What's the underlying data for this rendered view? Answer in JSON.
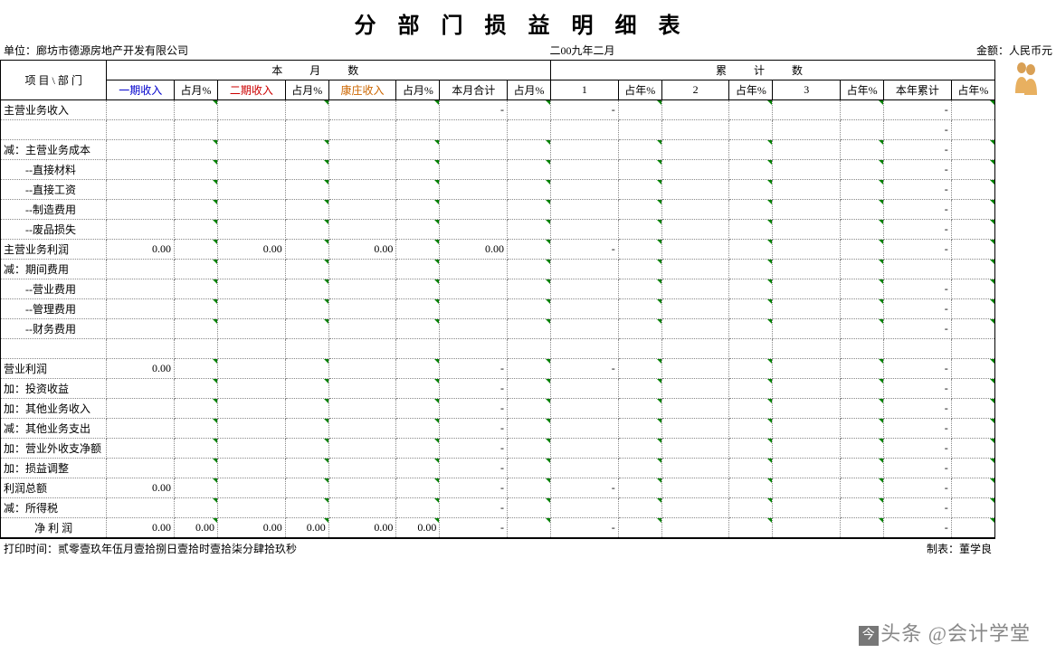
{
  "title": "分部门损益明细表",
  "meta": {
    "unit_label": "单位：",
    "unit_value": "廊坊市德源房地产开发有限公司",
    "period": "二00九年二月",
    "currency_label": "金额：",
    "currency_value": "人民币元"
  },
  "header": {
    "corner": "项 目 \\ 部 门",
    "group1": "本月数",
    "group2": "累计数",
    "cols": [
      {
        "label": "一期收入",
        "color": "c-blue"
      },
      {
        "label": "占月%",
        "color": ""
      },
      {
        "label": "二期收入",
        "color": "c-red"
      },
      {
        "label": "占月%",
        "color": ""
      },
      {
        "label": "康庄收入",
        "color": "c-brown"
      },
      {
        "label": "占月%",
        "color": ""
      },
      {
        "label": "本月合计",
        "color": ""
      },
      {
        "label": "占月%",
        "color": ""
      },
      {
        "label": "1",
        "color": ""
      },
      {
        "label": "占年%",
        "color": ""
      },
      {
        "label": "2",
        "color": ""
      },
      {
        "label": "占年%",
        "color": ""
      },
      {
        "label": "3",
        "color": ""
      },
      {
        "label": "占年%",
        "color": ""
      },
      {
        "label": "本年累计",
        "color": ""
      },
      {
        "label": "占年%",
        "color": ""
      }
    ]
  },
  "rows": [
    {
      "label": "主营业务收入",
      "cells": [
        "",
        "",
        "",
        "",
        "",
        "",
        "-",
        "",
        "-",
        "",
        "",
        "",
        "",
        "",
        "-",
        ""
      ],
      "marks": [
        1,
        3,
        5,
        7,
        9,
        11,
        13,
        15
      ]
    },
    {
      "label": "",
      "cells": [
        "",
        "",
        "",
        "",
        "",
        "",
        "",
        "",
        "",
        "",
        "",
        "",
        "",
        "",
        "-",
        ""
      ],
      "marks": []
    },
    {
      "label": "减：主营业务成本",
      "cells": [
        "",
        "",
        "",
        "",
        "",
        "",
        "",
        "",
        "",
        "",
        "",
        "",
        "",
        "",
        "-",
        ""
      ],
      "marks": [
        1,
        3,
        5,
        7,
        9,
        11,
        13,
        15
      ]
    },
    {
      "label": "　　--直接材料",
      "cells": [
        "",
        "",
        "",
        "",
        "",
        "",
        "",
        "",
        "",
        "",
        "",
        "",
        "",
        "",
        "-",
        ""
      ],
      "marks": [
        1,
        3,
        5,
        7,
        9,
        11,
        13,
        15
      ]
    },
    {
      "label": "　　--直接工资",
      "cells": [
        "",
        "",
        "",
        "",
        "",
        "",
        "",
        "",
        "",
        "",
        "",
        "",
        "",
        "",
        "-",
        ""
      ],
      "marks": [
        1,
        3,
        5,
        7,
        9,
        11,
        13,
        15
      ]
    },
    {
      "label": "　　--制造费用",
      "cells": [
        "",
        "",
        "",
        "",
        "",
        "",
        "",
        "",
        "",
        "",
        "",
        "",
        "",
        "",
        "-",
        ""
      ],
      "marks": [
        1,
        3,
        5,
        7,
        9,
        11,
        13,
        15
      ]
    },
    {
      "label": "　　--废品损失",
      "cells": [
        "",
        "",
        "",
        "",
        "",
        "",
        "",
        "",
        "",
        "",
        "",
        "",
        "",
        "",
        "-",
        ""
      ],
      "marks": [
        1,
        3,
        5,
        7,
        9,
        11,
        13,
        15
      ]
    },
    {
      "label": "主营业务利润",
      "cells": [
        "0.00",
        "",
        "0.00",
        "",
        "0.00",
        "",
        "0.00",
        "",
        "-",
        "",
        "",
        "",
        "",
        "",
        "-",
        ""
      ],
      "marks": [
        1,
        3,
        5,
        7,
        9,
        11,
        13,
        15
      ]
    },
    {
      "label": "减：期间费用",
      "cells": [
        "",
        "",
        "",
        "",
        "",
        "",
        "",
        "",
        "",
        "",
        "",
        "",
        "",
        "",
        "",
        ""
      ],
      "marks": [
        1,
        3,
        5,
        7,
        9,
        11,
        13,
        15
      ]
    },
    {
      "label": "　　--营业费用",
      "cells": [
        "",
        "",
        "",
        "",
        "",
        "",
        "",
        "",
        "",
        "",
        "",
        "",
        "",
        "",
        "-",
        ""
      ],
      "marks": [
        1,
        3,
        5,
        7,
        9,
        11,
        13,
        15
      ]
    },
    {
      "label": "　　--管理费用",
      "cells": [
        "",
        "",
        "",
        "",
        "",
        "",
        "",
        "",
        "",
        "",
        "",
        "",
        "",
        "",
        "-",
        ""
      ],
      "marks": [
        1,
        3,
        5,
        7,
        9,
        11,
        13,
        15
      ]
    },
    {
      "label": "　　--财务费用",
      "cells": [
        "",
        "",
        "",
        "",
        "",
        "",
        "",
        "",
        "",
        "",
        "",
        "",
        "",
        "",
        "-",
        ""
      ],
      "marks": [
        1,
        3,
        5,
        7,
        9,
        11,
        13,
        15
      ]
    },
    {
      "label": "",
      "cells": [
        "",
        "",
        "",
        "",
        "",
        "",
        "",
        "",
        "",
        "",
        "",
        "",
        "",
        "",
        "",
        ""
      ],
      "marks": []
    },
    {
      "label": "营业利润",
      "cells": [
        "0.00",
        "",
        "",
        "",
        "",
        "",
        "-",
        "",
        "-",
        "",
        "",
        "",
        "",
        "",
        "-",
        ""
      ],
      "marks": [
        1,
        3,
        5,
        7,
        9,
        11,
        13,
        15
      ]
    },
    {
      "label": "加：投资收益",
      "cells": [
        "",
        "",
        "",
        "",
        "",
        "",
        "-",
        "",
        "",
        "",
        "",
        "",
        "",
        "",
        "-",
        ""
      ],
      "marks": [
        1,
        3,
        5,
        7,
        9,
        11,
        13,
        15
      ]
    },
    {
      "label": "加：其他业务收入",
      "cells": [
        "",
        "",
        "",
        "",
        "",
        "",
        "-",
        "",
        "",
        "",
        "",
        "",
        "",
        "",
        "-",
        ""
      ],
      "marks": [
        1,
        3,
        5,
        7,
        9,
        11,
        13,
        15
      ]
    },
    {
      "label": "减：其他业务支出",
      "cells": [
        "",
        "",
        "",
        "",
        "",
        "",
        "-",
        "",
        "",
        "",
        "",
        "",
        "",
        "",
        "-",
        ""
      ],
      "marks": [
        1,
        3,
        5,
        7,
        9,
        11,
        13,
        15
      ]
    },
    {
      "label": "加：营业外收支净额",
      "cells": [
        "",
        "",
        "",
        "",
        "",
        "",
        "-",
        "",
        "",
        "",
        "",
        "",
        "",
        "",
        "-",
        ""
      ],
      "marks": [
        1,
        3,
        5,
        7,
        9,
        11,
        13,
        15
      ]
    },
    {
      "label": "加：损益调整",
      "cells": [
        "",
        "",
        "",
        "",
        "",
        "",
        "-",
        "",
        "",
        "",
        "",
        "",
        "",
        "",
        "-",
        ""
      ],
      "marks": [
        1,
        3,
        5,
        7,
        9,
        11,
        13,
        15
      ]
    },
    {
      "label": "利润总额",
      "cells": [
        "0.00",
        "",
        "",
        "",
        "",
        "",
        "-",
        "",
        "-",
        "",
        "",
        "",
        "",
        "",
        "-",
        ""
      ],
      "marks": [
        1,
        3,
        5,
        7,
        9,
        11,
        13,
        15
      ]
    },
    {
      "label": "减：所得税",
      "cells": [
        "",
        "",
        "",
        "",
        "",
        "",
        "-",
        "",
        "",
        "",
        "",
        "",
        "",
        "",
        "-",
        ""
      ],
      "marks": [
        1,
        3,
        5,
        7,
        9,
        11,
        13,
        15
      ]
    },
    {
      "label": "净 利 润",
      "cells": [
        "0.00",
        "0.00",
        "0.00",
        "0.00",
        "0.00",
        "0.00",
        "-",
        "",
        "-",
        "",
        "",
        "",
        "",
        "",
        "-",
        ""
      ],
      "marks": [
        1,
        3,
        5,
        7,
        9,
        11,
        13,
        15
      ],
      "center": true
    }
  ],
  "footer": {
    "print_label": "打印时间：",
    "print_value": "贰零壹玖年伍月壹拾捌日壹拾时壹拾柒分肆拾玖秒",
    "maker_label": "制表：",
    "maker_value": "董学良"
  },
  "watermark": {
    "prefix": "头条",
    "handle": "@会计学堂"
  },
  "colors": {
    "border": "#000000",
    "grid": "#888888",
    "blue": "#0000cc",
    "red": "#cc0000",
    "brown": "#cc6600",
    "mark": "#008000"
  },
  "colwidths": {
    "label": 110,
    "income": 70,
    "pct": 45,
    "total": 70,
    "year": 70
  }
}
